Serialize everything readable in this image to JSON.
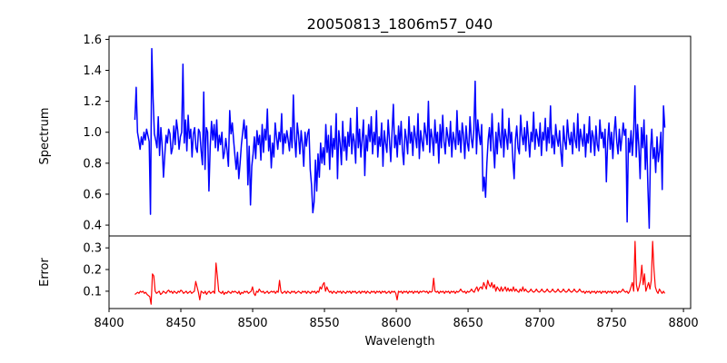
{
  "chart_data": {
    "type": "line",
    "title": "20050813_1806m57_040",
    "xlabel": "Wavelength",
    "xlim": [
      8400,
      8805
    ],
    "xticks": [
      8400,
      8450,
      8500,
      8550,
      8600,
      8650,
      8700,
      8750,
      8800
    ],
    "x_start": 8418,
    "x_end": 8787,
    "panels": [
      {
        "name": "spectrum-panel",
        "ylabel": "Spectrum",
        "ylim": [
          0.33,
          1.62
        ],
        "yticks": [
          0.4,
          0.6,
          0.8,
          1.0,
          1.2,
          1.4,
          1.6
        ],
        "color": "#0000ff",
        "series": [
          {
            "values": [
              1.08,
              1.29,
              1.0,
              0.95,
              0.89,
              0.97,
              0.92,
              1.0,
              0.95,
              1.02,
              0.98,
              0.94,
              0.47,
              1.54,
              1.22,
              0.99,
              0.95,
              0.9,
              1.1,
              0.85,
              1.03,
              0.91,
              0.71,
              0.85,
              0.98,
              0.93,
              1.02,
              0.99,
              0.86,
              0.9,
              1.04,
              0.92,
              1.08,
              1.01,
              0.89,
              0.97,
              1.0,
              1.44,
              0.93,
              1.08,
              0.88,
              1.11,
              0.96,
              1.02,
              0.84,
              0.99,
              1.03,
              0.9,
              0.87,
              1.02,
              1.0,
              0.88,
              0.79,
              1.26,
              0.76,
              1.03,
              1.0,
              0.62,
              0.91,
              1.07,
              0.95,
              1.05,
              0.9,
              1.08,
              0.88,
              0.98,
              0.92,
              1.0,
              0.83,
              0.87,
              0.96,
              0.88,
              0.78,
              1.14,
              0.99,
              1.06,
              0.95,
              0.85,
              0.76,
              0.87,
              0.7,
              0.8,
              0.92,
              1.0,
              1.08,
              0.96,
              1.04,
              0.66,
              0.91,
              0.53,
              0.78,
              0.86,
              0.97,
              0.83,
              1.01,
              0.92,
              0.98,
              0.82,
              1.05,
              0.87,
              1.02,
              0.95,
              1.15,
              0.88,
              0.98,
              0.77,
              0.93,
              0.84,
              1.06,
              0.97,
              0.89,
              1.0,
              0.94,
              1.12,
              0.86,
              0.99,
              0.93,
              1.01,
              0.95,
              0.88,
              1.03,
              0.9,
              1.24,
              0.96,
              0.84,
              1.06,
              0.98,
              0.86,
              1.01,
              0.92,
              0.78,
              1.0,
              0.91,
              0.99,
              1.02,
              0.76,
              0.66,
              0.48,
              0.55,
              0.82,
              0.62,
              0.86,
              0.71,
              0.93,
              0.8,
              0.9,
              0.79,
              1.05,
              0.87,
              0.98,
              0.76,
              1.04,
              0.84,
              0.96,
              0.89,
              1.12,
              0.7,
              1.01,
              0.93,
              0.79,
              1.07,
              0.88,
              0.97,
              0.82,
              1.0,
              0.91,
              1.09,
              0.86,
              0.99,
              0.94,
              0.8,
              1.16,
              0.9,
              1.02,
              0.84,
              0.96,
              1.08,
              0.72,
              0.98,
              0.88,
              1.05,
              0.94,
              1.1,
              0.86,
              1.0,
              0.92,
              1.14,
              0.84,
              0.97,
              0.91,
              1.06,
              0.78,
              1.01,
              0.93,
              0.87,
              1.08,
              0.95,
              0.81,
              1.0,
              1.18,
              0.9,
              0.98,
              0.84,
              1.04,
              0.92,
              1.07,
              0.88,
              0.79,
              1.02,
              0.96,
              0.86,
              1.1,
              0.93,
              1.0,
              0.85,
              1.04,
              0.97,
              0.9,
              1.12,
              0.83,
              1.01,
              0.94,
              0.88,
              1.06,
              0.99,
              0.92,
              1.2,
              0.87,
              1.02,
              0.96,
              0.85,
              1.08,
              0.93,
              1.0,
              0.8,
              1.05,
              0.9,
              1.11,
              0.94,
              0.86,
              1.03,
              0.97,
              0.91,
              1.07,
              0.84,
              1.0,
              0.95,
              0.89,
              1.14,
              0.92,
              1.01,
              0.87,
              1.06,
              0.98,
              0.83,
              1.04,
              0.93,
              0.88,
              1.1,
              0.96,
              0.9,
              1.02,
              1.33,
              0.86,
              1.08,
              0.99,
              0.92,
              1.05,
              0.62,
              0.71,
              0.58,
              0.8,
              0.95,
              1.03,
              0.88,
              1.12,
              0.91,
              0.77,
              1.0,
              0.86,
              1.06,
              0.95,
              0.9,
              1.15,
              0.84,
              1.02,
              0.97,
              0.89,
              1.09,
              0.93,
              1.0,
              0.82,
              0.7,
              0.95,
              1.04,
              0.9,
              0.86,
              1.11,
              0.98,
              0.92,
              1.03,
              0.88,
              1.07,
              0.96,
              0.84,
              1.0,
              0.94,
              1.13,
              0.89,
              1.02,
              0.97,
              0.91,
              1.06,
              0.85,
              1.0,
              0.95,
              1.09,
              0.88,
              1.03,
              0.93,
              1.17,
              0.9,
              0.98,
              0.86,
              1.05,
              0.96,
              0.91,
              1.01,
              0.87,
              0.78,
              1.04,
              0.94,
              0.89,
              1.08,
              0.97,
              0.92,
              1.0,
              0.86,
              1.06,
              0.95,
              0.9,
              1.12,
              0.88,
              1.02,
              0.96,
              0.91,
              1.05,
              0.84,
              0.99,
              0.93,
              1.1,
              0.87,
              1.01,
              0.97,
              0.85,
              1.04,
              0.92,
              0.88,
              1.08,
              0.96,
              1.0,
              0.9,
              1.02,
              0.68,
              0.94,
              1.06,
              0.89,
              1.0,
              0.83,
              1.0,
              1.1,
              0.94,
              0.86,
              1.02,
              0.88,
              0.97,
              1.06,
              0.98,
              1.02,
              0.42,
              0.96,
              0.87,
              1.01,
              0.85,
              0.99,
              1.3,
              0.84,
              1.05,
              0.91,
              0.7,
              1.03,
              0.9,
              1.08,
              0.76,
              0.98,
              0.64,
              0.38,
              0.88,
              1.02,
              0.83,
              0.9,
              0.74,
              0.97,
              0.81,
              0.88,
              1.0,
              0.63,
              1.17,
              1.03
            ]
          }
        ]
      },
      {
        "name": "error-panel",
        "ylabel": "Error",
        "ylim": [
          0.02,
          0.355
        ],
        "yticks": [
          0.1,
          0.2,
          0.3
        ],
        "color": "#ff0000",
        "series": [
          {
            "values": [
              0.085,
              0.09,
              0.095,
              0.09,
              0.1,
              0.095,
              0.1,
              0.09,
              0.095,
              0.085,
              0.08,
              0.075,
              0.04,
              0.18,
              0.17,
              0.1,
              0.09,
              0.095,
              0.1,
              0.085,
              0.09,
              0.1,
              0.095,
              0.09,
              0.1,
              0.105,
              0.095,
              0.1,
              0.09,
              0.1,
              0.095,
              0.09,
              0.1,
              0.095,
              0.105,
              0.1,
              0.09,
              0.095,
              0.1,
              0.09,
              0.095,
              0.1,
              0.09,
              0.095,
              0.1,
              0.145,
              0.12,
              0.095,
              0.06,
              0.1,
              0.095,
              0.09,
              0.1,
              0.085,
              0.095,
              0.1,
              0.09,
              0.095,
              0.1,
              0.09,
              0.23,
              0.17,
              0.1,
              0.095,
              0.09,
              0.1,
              0.085,
              0.095,
              0.09,
              0.1,
              0.095,
              0.09,
              0.1,
              0.095,
              0.1,
              0.095,
              0.09,
              0.1,
              0.085,
              0.095,
              0.09,
              0.1,
              0.095,
              0.1,
              0.09,
              0.095,
              0.1,
              0.12,
              0.09,
              0.08,
              0.1,
              0.095,
              0.11,
              0.1,
              0.095,
              0.1,
              0.09,
              0.095,
              0.1,
              0.09,
              0.095,
              0.1,
              0.095,
              0.1,
              0.09,
              0.1,
              0.095,
              0.15,
              0.1,
              0.09,
              0.095,
              0.1,
              0.09,
              0.1,
              0.095,
              0.09,
              0.1,
              0.095,
              0.1,
              0.09,
              0.095,
              0.1,
              0.095,
              0.09,
              0.1,
              0.095,
              0.1,
              0.09,
              0.1,
              0.095,
              0.09,
              0.1,
              0.095,
              0.1,
              0.09,
              0.1,
              0.095,
              0.12,
              0.11,
              0.13,
              0.14,
              0.1,
              0.12,
              0.105,
              0.095,
              0.1,
              0.09,
              0.1,
              0.095,
              0.09,
              0.1,
              0.095,
              0.1,
              0.09,
              0.1,
              0.095,
              0.09,
              0.1,
              0.095,
              0.1,
              0.09,
              0.1,
              0.095,
              0.1,
              0.09,
              0.095,
              0.1,
              0.09,
              0.1,
              0.095,
              0.1,
              0.09,
              0.1,
              0.095,
              0.09,
              0.1,
              0.095,
              0.1,
              0.09,
              0.1,
              0.095,
              0.1,
              0.09,
              0.1,
              0.095,
              0.1,
              0.09,
              0.095,
              0.1,
              0.09,
              0.1,
              0.095,
              0.1,
              0.09,
              0.06,
              0.1,
              0.095,
              0.1,
              0.09,
              0.1,
              0.095,
              0.1,
              0.09,
              0.1,
              0.095,
              0.1,
              0.09,
              0.1,
              0.095,
              0.1,
              0.09,
              0.1,
              0.095,
              0.1,
              0.1,
              0.095,
              0.1,
              0.09,
              0.1,
              0.095,
              0.1,
              0.16,
              0.1,
              0.095,
              0.1,
              0.09,
              0.1,
              0.095,
              0.1,
              0.09,
              0.1,
              0.095,
              0.1,
              0.09,
              0.1,
              0.095,
              0.1,
              0.09,
              0.1,
              0.095,
              0.1,
              0.11,
              0.1,
              0.095,
              0.1,
              0.09,
              0.1,
              0.095,
              0.1,
              0.11,
              0.1,
              0.095,
              0.11,
              0.12,
              0.1,
              0.115,
              0.12,
              0.11,
              0.14,
              0.125,
              0.11,
              0.15,
              0.13,
              0.12,
              0.14,
              0.115,
              0.13,
              0.1,
              0.12,
              0.11,
              0.1,
              0.12,
              0.1,
              0.11,
              0.12,
              0.1,
              0.115,
              0.1,
              0.11,
              0.1,
              0.12,
              0.1,
              0.11,
              0.1,
              0.095,
              0.11,
              0.1,
              0.12,
              0.1,
              0.11,
              0.1,
              0.095,
              0.1,
              0.11,
              0.1,
              0.095,
              0.1,
              0.11,
              0.1,
              0.095,
              0.1,
              0.11,
              0.1,
              0.095,
              0.1,
              0.11,
              0.1,
              0.095,
              0.1,
              0.11,
              0.1,
              0.095,
              0.1,
              0.11,
              0.1,
              0.095,
              0.1,
              0.11,
              0.1,
              0.095,
              0.1,
              0.11,
              0.1,
              0.095,
              0.1,
              0.11,
              0.1,
              0.095,
              0.1,
              0.11,
              0.1,
              0.095,
              0.1,
              0.09,
              0.1,
              0.095,
              0.1,
              0.09,
              0.1,
              0.095,
              0.1,
              0.09,
              0.1,
              0.095,
              0.1,
              0.09,
              0.1,
              0.095,
              0.1,
              0.09,
              0.1,
              0.095,
              0.1,
              0.09,
              0.1,
              0.095,
              0.1,
              0.09,
              0.1,
              0.095,
              0.1,
              0.11,
              0.1,
              0.095,
              0.1,
              0.09,
              0.1,
              0.12,
              0.14,
              0.1,
              0.33,
              0.13,
              0.1,
              0.12,
              0.15,
              0.22,
              0.13,
              0.18,
              0.1,
              0.12,
              0.14,
              0.11,
              0.15,
              0.33,
              0.2,
              0.12,
              0.1,
              0.09,
              0.11,
              0.1,
              0.09,
              0.1,
              0.09
            ]
          }
        ]
      }
    ]
  }
}
